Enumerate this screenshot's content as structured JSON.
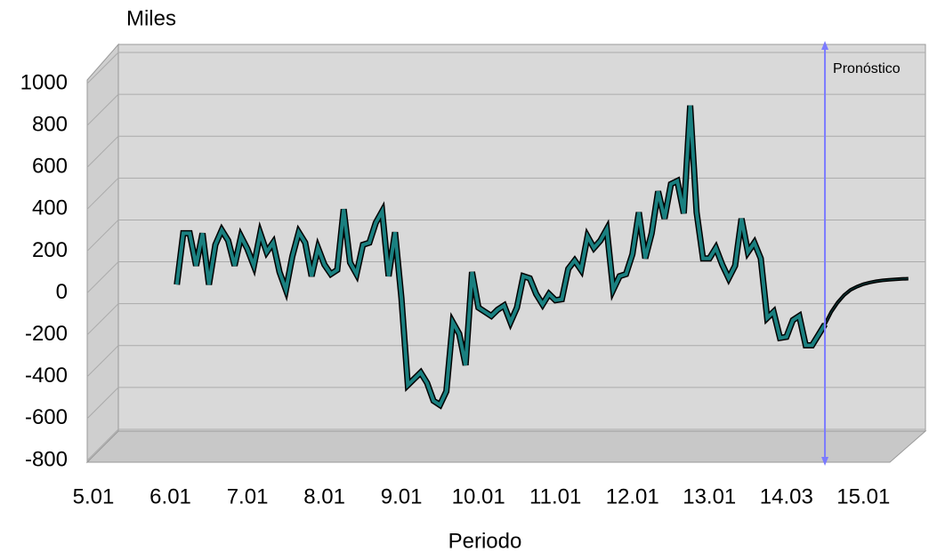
{
  "chart_data": {
    "type": "line",
    "y_axis_label": "Miles",
    "x_axis_label": "Periodo",
    "xlim": [
      0,
      128
    ],
    "xticks": [
      {
        "value": 0,
        "label": "5.01"
      },
      {
        "value": 12,
        "label": "6.01"
      },
      {
        "value": 24,
        "label": "7.01"
      },
      {
        "value": 36,
        "label": "8.01"
      },
      {
        "value": 48,
        "label": "9.01"
      },
      {
        "value": 60,
        "label": "10.01"
      },
      {
        "value": 72,
        "label": "11.01"
      },
      {
        "value": 84,
        "label": "12.01"
      },
      {
        "value": 96,
        "label": "13.01"
      },
      {
        "value": 108,
        "label": "14.03"
      },
      {
        "value": 120,
        "label": "15.01"
      }
    ],
    "ylim": [
      -800,
      1000
    ],
    "yticks": [
      -800,
      -600,
      -400,
      -200,
      0,
      200,
      400,
      600,
      800,
      1000
    ],
    "grid": true,
    "forecast_marker": {
      "x": 114,
      "label": "Pronóstico",
      "color": "#7b7bff"
    },
    "series": [
      {
        "color": "#1a8080",
        "x": [
          13,
          14,
          15,
          16,
          17,
          18,
          19,
          20,
          21,
          22,
          23,
          24,
          25,
          26,
          27,
          28,
          29,
          30,
          31,
          32,
          33,
          34,
          35,
          36,
          37,
          38,
          39,
          40,
          41,
          42,
          43,
          44,
          45,
          46,
          47,
          48,
          49,
          50,
          51,
          52,
          53,
          54,
          55,
          56,
          57,
          58,
          59,
          60,
          61,
          62,
          63,
          64,
          65,
          66,
          67,
          68,
          69,
          70,
          71,
          72,
          73,
          74,
          75,
          76,
          77,
          78,
          79,
          80,
          81,
          82,
          83,
          84,
          85,
          86,
          87,
          88,
          89,
          90,
          91,
          92,
          93,
          94,
          95,
          96,
          97,
          98,
          99,
          100,
          101,
          102,
          103,
          104,
          105,
          106,
          107,
          108,
          109,
          110,
          111,
          112,
          113,
          114
        ],
        "values": [
          40,
          285,
          285,
          130,
          285,
          40,
          230,
          300,
          250,
          130,
          270,
          210,
          130,
          285,
          195,
          240,
          100,
          15,
          175,
          290,
          240,
          80,
          215,
          135,
          90,
          110,
          400,
          145,
          90,
          230,
          240,
          335,
          390,
          80,
          290,
          -25,
          -440,
          -410,
          -380,
          -430,
          -515,
          -535,
          -470,
          -140,
          -195,
          -345,
          100,
          -70,
          -90,
          -110,
          -80,
          -60,
          -140,
          -70,
          80,
          70,
          -5,
          -55,
          -5,
          -35,
          -30,
          115,
          155,
          110,
          270,
          215,
          250,
          305,
          15,
          80,
          90,
          185,
          385,
          165,
          285,
          485,
          355,
          520,
          535,
          380,
          895,
          385,
          165,
          165,
          215,
          135,
          70,
          130,
          355,
          195,
          240,
          165,
          -120,
          -90,
          -215,
          -210,
          -130,
          -110,
          -250,
          -250,
          -200,
          -150
        ]
      },
      {
        "color": "#0d3b3b",
        "x": [
          114,
          115,
          116,
          117,
          118,
          119,
          120,
          121,
          122,
          123,
          124,
          125,
          126,
          127
        ],
        "values": [
          -150,
          -90,
          -45,
          -10,
          15,
          30,
          42,
          50,
          56,
          60,
          63,
          65,
          67,
          68
        ]
      }
    ]
  }
}
